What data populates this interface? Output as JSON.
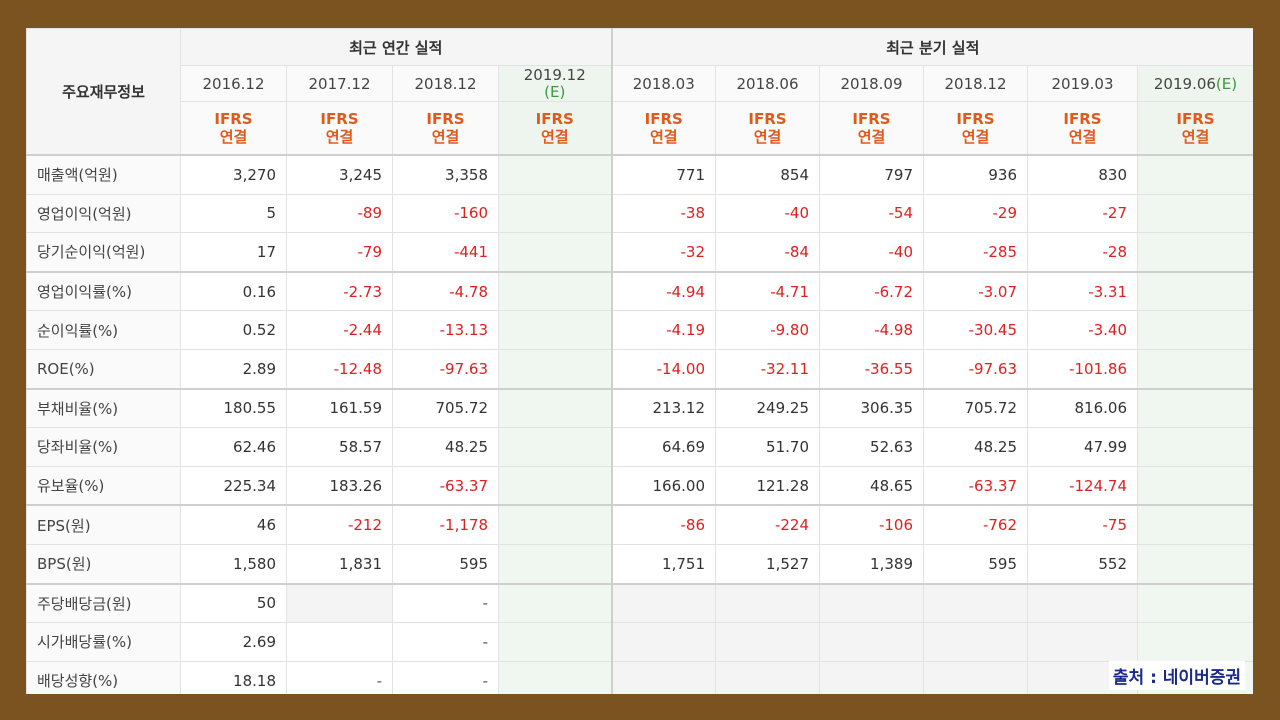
{
  "header": {
    "corner_label": "주요재무정보",
    "annual_group": "최근 연간 실적",
    "quarter_group": "최근 분기 실적",
    "periods": [
      {
        "label": "2016.12",
        "est": ""
      },
      {
        "label": "2017.12",
        "est": ""
      },
      {
        "label": "2018.12",
        "est": ""
      },
      {
        "label": "2019.12",
        "est": "(E)"
      },
      {
        "label": "2018.03",
        "est": ""
      },
      {
        "label": "2018.06",
        "est": ""
      },
      {
        "label": "2018.09",
        "est": ""
      },
      {
        "label": "2018.12",
        "est": ""
      },
      {
        "label": "2019.03",
        "est": ""
      },
      {
        "label": "2019.06",
        "est": "(E)"
      }
    ],
    "ifrs_line1": "IFRS",
    "ifrs_line2": "연결"
  },
  "rows": [
    {
      "label": "매출액(억원)",
      "values": [
        "3,270",
        "3,245",
        "3,358",
        "",
        "771",
        "854",
        "797",
        "936",
        "830",
        ""
      ]
    },
    {
      "label": "영업이익(억원)",
      "values": [
        "5",
        "-89",
        "-160",
        "",
        "-38",
        "-40",
        "-54",
        "-29",
        "-27",
        ""
      ]
    },
    {
      "label": "당기순이익(억원)",
      "values": [
        "17",
        "-79",
        "-441",
        "",
        "-32",
        "-84",
        "-40",
        "-285",
        "-28",
        ""
      ]
    },
    {
      "label": "영업이익률(%)",
      "values": [
        "0.16",
        "-2.73",
        "-4.78",
        "",
        "-4.94",
        "-4.71",
        "-6.72",
        "-3.07",
        "-3.31",
        ""
      ]
    },
    {
      "label": "순이익률(%)",
      "values": [
        "0.52",
        "-2.44",
        "-13.13",
        "",
        "-4.19",
        "-9.80",
        "-4.98",
        "-30.45",
        "-3.40",
        ""
      ]
    },
    {
      "label": "ROE(%)",
      "values": [
        "2.89",
        "-12.48",
        "-97.63",
        "",
        "-14.00",
        "-32.11",
        "-36.55",
        "-97.63",
        "-101.86",
        ""
      ]
    },
    {
      "label": "부채비율(%)",
      "values": [
        "180.55",
        "161.59",
        "705.72",
        "",
        "213.12",
        "249.25",
        "306.35",
        "705.72",
        "816.06",
        ""
      ]
    },
    {
      "label": "당좌비율(%)",
      "values": [
        "62.46",
        "58.57",
        "48.25",
        "",
        "64.69",
        "51.70",
        "52.63",
        "48.25",
        "47.99",
        ""
      ]
    },
    {
      "label": "유보율(%)",
      "values": [
        "225.34",
        "183.26",
        "-63.37",
        "",
        "166.00",
        "121.28",
        "48.65",
        "-63.37",
        "-124.74",
        ""
      ]
    },
    {
      "label": "EPS(원)",
      "values": [
        "46",
        "-212",
        "-1,178",
        "",
        "-86",
        "-224",
        "-106",
        "-762",
        "-75",
        ""
      ]
    },
    {
      "label": "BPS(원)",
      "values": [
        "1,580",
        "1,831",
        "595",
        "",
        "1,751",
        "1,527",
        "1,389",
        "595",
        "552",
        ""
      ]
    },
    {
      "label": "주당배당금(원)",
      "values": [
        "50",
        "",
        "-",
        "",
        "",
        "",
        "",
        "",
        "",
        ""
      ]
    },
    {
      "label": "시가배당률(%)",
      "values": [
        "2.69",
        "",
        "-",
        "",
        "",
        "",
        "",
        "",
        "",
        ""
      ]
    },
    {
      "label": "배당성향(%)",
      "values": [
        "18.18",
        "-",
        "-",
        "",
        "",
        "",
        "",
        "",
        "",
        ""
      ]
    }
  ],
  "source_label": "출처 : 네이버증권",
  "colors": {
    "negative": "#e02020",
    "ifrs": "#e05a1c",
    "estimate": "#3a9a3a",
    "frame": "#7a5320",
    "source": "#1a2a8c"
  }
}
